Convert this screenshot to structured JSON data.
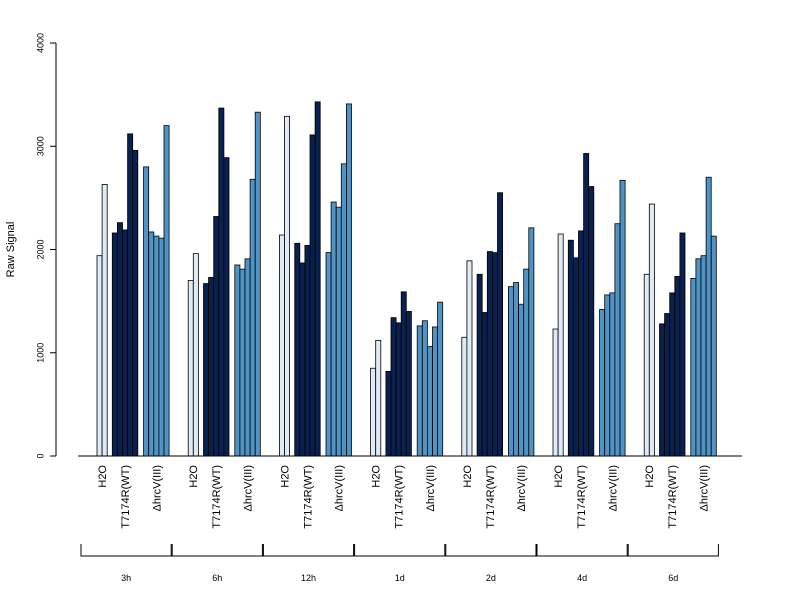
{
  "chart_data": {
    "type": "bar",
    "title": "",
    "xlabel": "",
    "ylabel": "Raw Signal",
    "ylim": [
      0,
      4000
    ],
    "yticks": [
      0,
      1000,
      2000,
      3000,
      4000
    ],
    "grid": false,
    "legend": "none",
    "groups": [
      "3h",
      "6h",
      "12h",
      "1d",
      "2d",
      "4d",
      "6d"
    ],
    "categories": [
      "H2O",
      "T7174R(WT)",
      "ΔhrcV(III)"
    ],
    "category_colors": {
      "H2O": "#deebf7",
      "T7174R(WT)": "#08214f",
      "ΔhrcV(III)": "#4f94c5"
    },
    "values": [
      [
        [
          1940,
          2630
        ],
        [
          2160,
          2260,
          2190,
          3120,
          2960
        ],
        [
          2800,
          2170,
          2130,
          2110,
          3200
        ]
      ],
      [
        [
          1700,
          1960
        ],
        [
          1670,
          1730,
          2320,
          3370,
          2890
        ],
        [
          1850,
          1810,
          1910,
          2680,
          3330
        ]
      ],
      [
        [
          2140,
          3290
        ],
        [
          2060,
          1870,
          2040,
          3110,
          3430
        ],
        [
          1970,
          2460,
          2410,
          2830,
          3410
        ]
      ],
      [
        [
          850,
          1120
        ],
        [
          820,
          1340,
          1290,
          1590,
          1400
        ],
        [
          1260,
          1310,
          1060,
          1250,
          1490
        ]
      ],
      [
        [
          1150,
          1890
        ],
        [
          1760,
          1390,
          1980,
          1970,
          2550
        ],
        [
          1640,
          1680,
          1470,
          1810,
          2210
        ]
      ],
      [
        [
          1230,
          2150
        ],
        [
          2090,
          1920,
          2180,
          2930,
          2610
        ],
        [
          1420,
          1560,
          1580,
          2250,
          2670
        ]
      ],
      [
        [
          1760,
          2440
        ],
        [
          1280,
          1380,
          1580,
          1740,
          2160
        ],
        [
          1720,
          1910,
          1940,
          2700,
          2130
        ]
      ]
    ]
  }
}
